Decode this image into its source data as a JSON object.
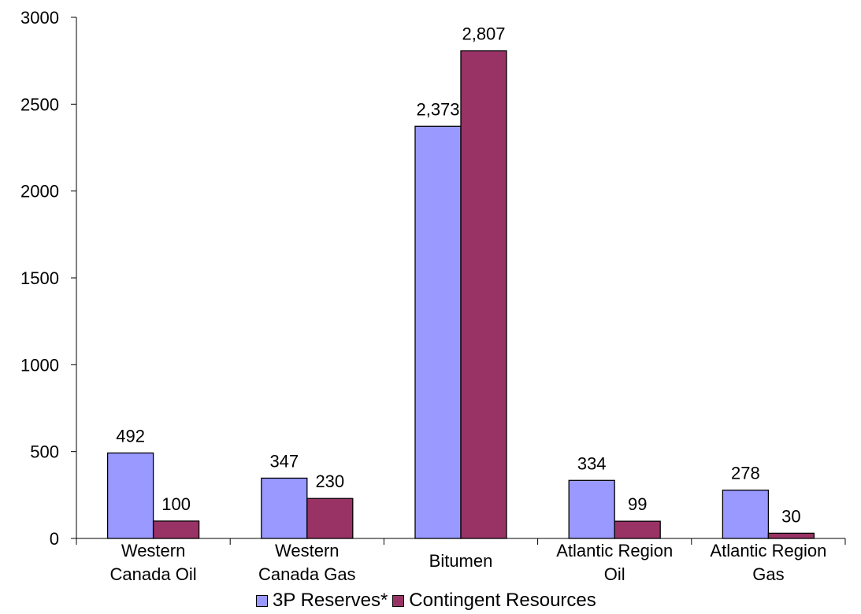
{
  "chart_data": {
    "type": "bar",
    "title": "",
    "xlabel": "",
    "ylabel": "",
    "ylim": [
      0,
      3000
    ],
    "yticks": [
      0,
      500,
      1000,
      1500,
      2000,
      2500,
      3000
    ],
    "ytick_labels": [
      "0",
      "500",
      "1000",
      "1500",
      "2000",
      "2500",
      "3000"
    ],
    "grid": false,
    "legend_position": "bottom",
    "categories": [
      [
        "Western",
        "Canada Oil"
      ],
      [
        "Western",
        "Canada Gas"
      ],
      [
        "Bitumen"
      ],
      [
        "Atlantic Region",
        "Oil"
      ],
      [
        "Atlantic Region",
        "Gas"
      ]
    ],
    "series": [
      {
        "name": "3P Reserves*",
        "color": "#9999ff",
        "values": [
          492,
          347,
          2373,
          334,
          278
        ],
        "labels": [
          "492",
          "347",
          "2,373",
          "334",
          "278"
        ]
      },
      {
        "name": "Contingent Resources",
        "color": "#993366",
        "values": [
          100,
          230,
          2807,
          99,
          30
        ],
        "labels": [
          "100",
          "230",
          "2,807",
          "99",
          "30"
        ]
      }
    ]
  }
}
